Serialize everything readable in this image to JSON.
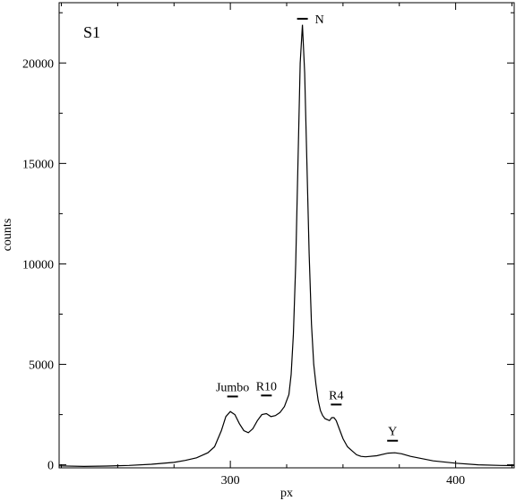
{
  "chart_data": {
    "type": "line",
    "panel_label": "S1",
    "xlabel": "px",
    "ylabel": "counts",
    "xlim": [
      224,
      426
    ],
    "ylim": [
      -150,
      23000
    ],
    "xticks": [
      300,
      400
    ],
    "xtick_labels": [
      "300",
      "400"
    ],
    "yticks": [
      0,
      5000,
      10000,
      15000,
      20000
    ],
    "ytick_labels": [
      "0",
      "5000",
      "10000",
      "15000",
      "20000"
    ],
    "grid": false,
    "series": [
      {
        "x": [
          224,
          235,
          245,
          255,
          265,
          275,
          280,
          285,
          290,
          293,
          296,
          298,
          300,
          302,
          304,
          306,
          308,
          310,
          312,
          314,
          316,
          318,
          320,
          322,
          324,
          326,
          327,
          328,
          329,
          330,
          331,
          332,
          333,
          334,
          335,
          336,
          337,
          338,
          339,
          340,
          341,
          342,
          344,
          345,
          346,
          347,
          348,
          350,
          352,
          354,
          356,
          358,
          360,
          365,
          370,
          373,
          376,
          380,
          390,
          400,
          410,
          420,
          426
        ],
        "y": [
          -50,
          -80,
          -60,
          -30,
          30,
          120,
          220,
          350,
          600,
          900,
          1700,
          2400,
          2650,
          2500,
          2050,
          1700,
          1600,
          1800,
          2200,
          2500,
          2550,
          2400,
          2450,
          2600,
          2900,
          3500,
          4500,
          6500,
          10000,
          15000,
          20000,
          21900,
          19500,
          15000,
          10500,
          7000,
          5000,
          4000,
          3200,
          2700,
          2450,
          2300,
          2200,
          2350,
          2350,
          2200,
          1900,
          1300,
          900,
          700,
          500,
          420,
          400,
          450,
          580,
          600,
          550,
          420,
          200,
          80,
          0,
          -30,
          -40
        ]
      }
    ],
    "annotations": [
      {
        "label": "N",
        "x": 332,
        "y": 22200
      },
      {
        "label": "Jumbo",
        "x": 301,
        "y": 3400
      },
      {
        "label": "R10",
        "x": 316,
        "y": 3450
      },
      {
        "label": "R4",
        "x": 347,
        "y": 3000
      },
      {
        "label": "Y",
        "x": 372,
        "y": 1200
      }
    ]
  }
}
